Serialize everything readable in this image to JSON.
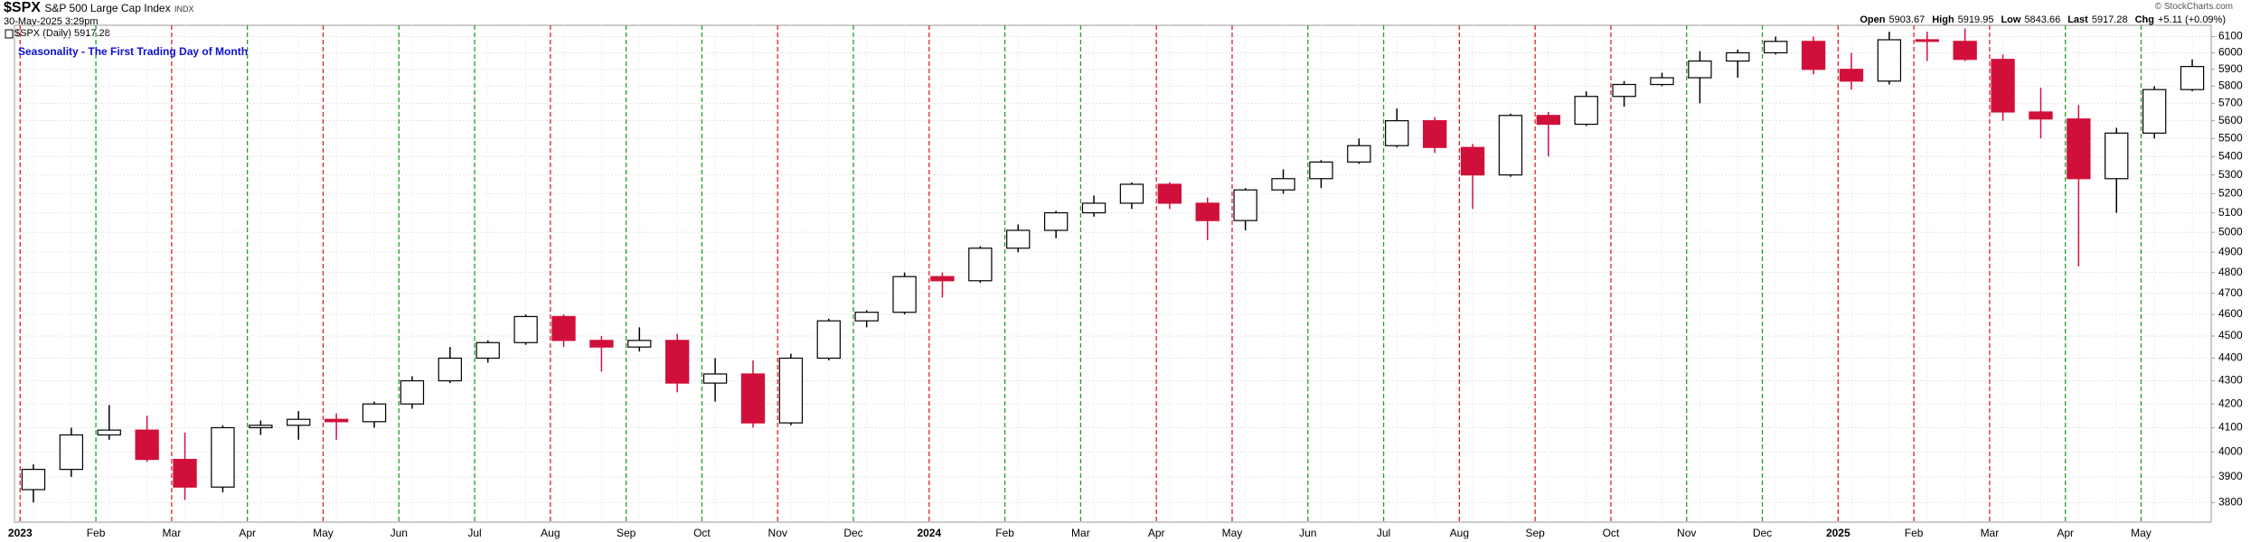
{
  "chart_data": {
    "type": "candlestick",
    "symbol": "$SPX",
    "name": "S&P 500 Large Cap Index",
    "exchange": "INDX",
    "timestamp": "30-May-2025 3:29pm",
    "legend_label": "$SPX (Daily) 5917.28",
    "credit": "© StockCharts.com",
    "title": "Seasonality - The First Trading Day of Month",
    "quote": [
      {
        "label": "Open",
        "value": 5903.67
      },
      {
        "label": "High",
        "value": 5919.95
      },
      {
        "label": "Low",
        "value": 5843.66
      },
      {
        "label": "Last",
        "value": 5917.28
      },
      {
        "label": "Chg",
        "value": "+5.11 (+0.09%)"
      }
    ],
    "categories": [
      "2023",
      null,
      "Feb",
      null,
      "Mar",
      null,
      "Apr",
      null,
      "May",
      null,
      "Jun",
      null,
      "Jul",
      null,
      "Aug",
      null,
      "Sep",
      null,
      "Oct",
      null,
      "Nov",
      null,
      "Dec",
      null,
      "2024",
      null,
      "Feb",
      null,
      "Mar",
      null,
      "Apr",
      null,
      "May",
      null,
      "Jun",
      null,
      "Jul",
      null,
      "Aug",
      null,
      "Sep",
      null,
      "Oct",
      null,
      "Nov",
      null,
      "Dec",
      null,
      "2025",
      null,
      "Feb",
      null,
      "Mar",
      null,
      "Apr",
      null,
      "May",
      null
    ],
    "month_line_colors": [
      "#e0202a",
      "#22a022",
      "#e0202a",
      "#22a022",
      "#e0202a",
      "#22a022",
      "#22a022",
      "#e0202a",
      "#22a022",
      "#22a022",
      "#e0202a",
      "#22a022",
      "#e0202a",
      "#22a022",
      "#22a022",
      "#e0202a",
      "#e0202a",
      "#22a022",
      "#22a022",
      "#e0202a",
      "#e0202a",
      "#e0202a",
      "#22a022",
      "#22a022",
      "#e0202a",
      "#e0202a",
      "#e0202a",
      "#22a022",
      "#22a022"
    ],
    "up_color": "#ffffff",
    "down_color": "#d0103a",
    "series": [
      {
        "name": "$SPX",
        "open": [
          3850,
          3930,
          4070,
          4090,
          3970,
          3860,
          4100,
          4110,
          4135,
          4125,
          4200,
          4300,
          4400,
          4470,
          4590,
          4480,
          4450,
          4480,
          4290,
          4330,
          4120,
          4400,
          4570,
          4610,
          4780,
          4760,
          4920,
          5010,
          5100,
          5150,
          5250,
          5150,
          5060,
          5220,
          5280,
          5370,
          5460,
          5600,
          5450,
          5300,
          5630,
          5580,
          5740,
          5810,
          5850,
          5950,
          6000,
          6070,
          5900,
          5830,
          6080,
          6070,
          5960,
          5650,
          5610,
          5280,
          5530,
          5780
        ],
        "high": [
          3950,
          4100,
          4195,
          4150,
          4080,
          4110,
          4130,
          4170,
          4160,
          4210,
          4320,
          4450,
          4480,
          4600,
          4600,
          4500,
          4540,
          4510,
          4400,
          4390,
          4420,
          4580,
          4620,
          4800,
          4800,
          4930,
          5040,
          5110,
          5190,
          5260,
          5260,
          5180,
          5230,
          5330,
          5380,
          5500,
          5670,
          5620,
          5470,
          5640,
          5650,
          5770,
          5830,
          5880,
          6010,
          6020,
          6100,
          6100,
          6000,
          6130,
          6130,
          6150,
          5990,
          5790,
          5690,
          5560,
          5800,
          5960
        ],
        "low": [
          3800,
          3900,
          4050,
          3960,
          3810,
          3840,
          4070,
          4050,
          4050,
          4100,
          4180,
          4290,
          4380,
          4460,
          4450,
          4340,
          4430,
          4250,
          4210,
          4100,
          4110,
          4390,
          4540,
          4600,
          4680,
          4750,
          4900,
          4970,
          5080,
          5120,
          5120,
          4960,
          5010,
          5200,
          5230,
          5360,
          5450,
          5420,
          5120,
          5290,
          5400,
          5570,
          5680,
          5800,
          5700,
          5850,
          5990,
          5870,
          5780,
          5810,
          5950,
          5950,
          5600,
          5500,
          4830,
          5100,
          5500,
          5770
        ],
        "close": [
          3930,
          4070,
          4090,
          3970,
          3860,
          4100,
          4110,
          4135,
          4125,
          4200,
          4300,
          4400,
          4470,
          4590,
          4480,
          4450,
          4480,
          4290,
          4330,
          4120,
          4400,
          4570,
          4610,
          4780,
          4760,
          4920,
          5010,
          5100,
          5150,
          5250,
          5150,
          5060,
          5220,
          5280,
          5370,
          5460,
          5600,
          5450,
          5300,
          5630,
          5580,
          5740,
          5810,
          5850,
          5950,
          6000,
          6070,
          5900,
          5830,
          6080,
          6070,
          5960,
          5650,
          5610,
          5280,
          5530,
          5780,
          5917
        ]
      }
    ],
    "log_scale": true,
    "ylim": [
      3725,
      6170
    ],
    "yticks": [
      3800,
      3900,
      4000,
      4100,
      4200,
      4300,
      4400,
      4500,
      4600,
      4700,
      4800,
      4900,
      5000,
      5100,
      5200,
      5300,
      5400,
      5500,
      5600,
      5700,
      5800,
      5900,
      6000,
      6100
    ],
    "grid": true
  }
}
